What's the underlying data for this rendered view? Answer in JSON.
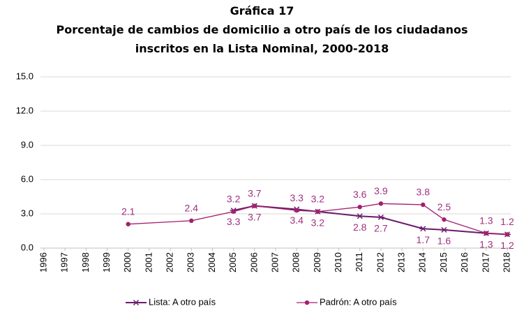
{
  "chart_data": {
    "type": "line",
    "title": "Gráfica 17",
    "subtitle": "Porcentaje de cambios de domicilio a otro país de los ciudadanos inscritos en la Lista Nominal, 2000-2018",
    "xlim": [
      1996,
      2018
    ],
    "xticks": [
      1996,
      1997,
      1998,
      1999,
      2000,
      2001,
      2002,
      2003,
      2004,
      2005,
      2006,
      2007,
      2008,
      2009,
      2010,
      2011,
      2012,
      2013,
      2014,
      2015,
      2016,
      2017,
      2018
    ],
    "ylim": [
      0,
      15
    ],
    "yticks": [
      {
        "value": 0,
        "label": "0.0"
      },
      {
        "value": 3,
        "label": "3.0"
      },
      {
        "value": 6,
        "label": "6.0"
      },
      {
        "value": 9,
        "label": "9.0"
      },
      {
        "value": 12,
        "label": "12.0"
      },
      {
        "value": 15,
        "label": "15.0"
      }
    ],
    "grid": true,
    "legend": "bottom",
    "series": [
      {
        "name": "Lista: A otro país",
        "color": "#6a1b6a",
        "marker": "star",
        "label_position": "below",
        "x": [
          2005,
          2006,
          2008,
          2009,
          2011,
          2012,
          2014,
          2015,
          2017,
          2018
        ],
        "values": [
          3.3,
          3.7,
          3.4,
          3.2,
          2.8,
          2.7,
          1.7,
          1.6,
          1.3,
          1.2
        ]
      },
      {
        "name": "Padrón: A otro país",
        "color": "#a3206e",
        "marker": "circle",
        "label_position": "above",
        "x": [
          2000,
          2003,
          2005,
          2006,
          2008,
          2009,
          2011,
          2012,
          2014,
          2015,
          2017,
          2018
        ],
        "values": [
          2.1,
          2.4,
          3.2,
          3.7,
          3.3,
          3.2,
          3.6,
          3.9,
          3.8,
          2.5,
          1.3,
          1.2
        ]
      }
    ]
  }
}
